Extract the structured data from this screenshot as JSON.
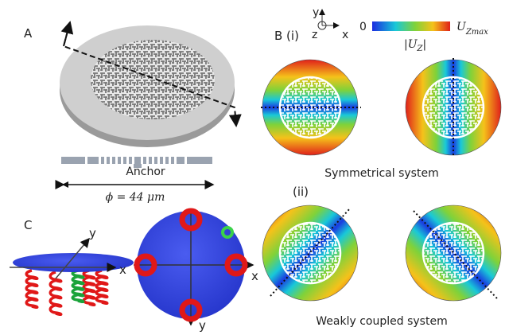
{
  "panel_a": {
    "label": "A",
    "anchor_label": "Anchor",
    "dimension": "ϕ = 44 μm"
  },
  "panel_b": {
    "label": "B (i)",
    "axes": {
      "y": "y",
      "z": "z",
      "x": "x"
    },
    "colorbar": {
      "min": "0",
      "max": "U",
      "max_subscript": "Zmax",
      "title_left": "|U",
      "title_subscript": "Z",
      "title_right": "|"
    },
    "row_1": {
      "caption": "Symmetrical system"
    },
    "row_2": {
      "label": "(ii)",
      "caption": "Weakly coupled system"
    }
  },
  "panel_c": {
    "label": "C",
    "side_view_axes": {
      "y": "y",
      "x": "x"
    },
    "top_view_axes": {
      "x": "x",
      "y": "y"
    }
  }
}
